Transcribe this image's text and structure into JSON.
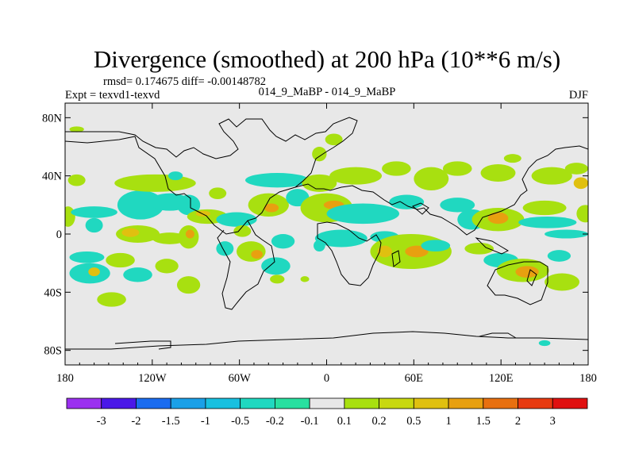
{
  "chart_data": {
    "type": "heatmap",
    "title": "Divergence (smoothed) at 200 hPa (10**6 m/s)",
    "stats_label": "rmsd= 0.174675 diff= -0.00148782",
    "left_label": "Expt = texvd1-texvd",
    "center_label": "014_9_MaBP - 014_9_MaBP",
    "right_label": "DJF",
    "xlim": [
      -180,
      180
    ],
    "ylim": [
      -90,
      90
    ],
    "x_ticks": [
      {
        "value": -180,
        "label": "180"
      },
      {
        "value": -120,
        "label": "120W"
      },
      {
        "value": -60,
        "label": "60W"
      },
      {
        "value": 0,
        "label": "0"
      },
      {
        "value": 60,
        "label": "60E"
      },
      {
        "value": 120,
        "label": "120E"
      },
      {
        "value": 180,
        "label": "180"
      }
    ],
    "y_ticks": [
      {
        "value": 80,
        "label": "80N"
      },
      {
        "value": 40,
        "label": "40N"
      },
      {
        "value": 0,
        "label": "0"
      },
      {
        "value": -40,
        "label": "40S"
      },
      {
        "value": -80,
        "label": "80S"
      }
    ],
    "colorbar": {
      "colors": [
        "#9b30f0",
        "#4a18e8",
        "#1a6cf0",
        "#1aa0e8",
        "#18c0e0",
        "#20d8c0",
        "#28e0a0",
        "#e8e8e8",
        "#a8e010",
        "#c8d810",
        "#e0c010",
        "#e8a010",
        "#e87010",
        "#e83a10",
        "#e01010"
      ],
      "labels": [
        "-3",
        "-2",
        "-1.5",
        "-1",
        "-0.5",
        "-0.2",
        "-0.1",
        "0.1",
        "0.2",
        "0.5",
        "1",
        "1.5",
        "2",
        "3"
      ]
    },
    "blobs": [
      {
        "lon": -172,
        "lat": 72,
        "rx": 5,
        "ry": 2,
        "level": 8
      },
      {
        "lon": -172,
        "lat": 37,
        "rx": 6,
        "ry": 4,
        "level": 8
      },
      {
        "lon": -178,
        "lat": 12,
        "rx": 5,
        "ry": 7,
        "level": 8
      },
      {
        "lon": -160,
        "lat": 15,
        "rx": 16,
        "ry": 4,
        "level": 5
      },
      {
        "lon": -160,
        "lat": 6,
        "rx": 6,
        "ry": 5,
        "level": 5
      },
      {
        "lon": -128,
        "lat": 20,
        "rx": 16,
        "ry": 10,
        "level": 5
      },
      {
        "lon": -118,
        "lat": 35,
        "rx": 28,
        "ry": 6,
        "level": 8
      },
      {
        "lon": -108,
        "lat": 22,
        "rx": 14,
        "ry": 6,
        "level": 5
      },
      {
        "lon": -130,
        "lat": 0,
        "rx": 15,
        "ry": 6,
        "level": 8
      },
      {
        "lon": -135,
        "lat": 1,
        "rx": 6,
        "ry": 3,
        "level": 10
      },
      {
        "lon": -108,
        "lat": -3,
        "rx": 12,
        "ry": 4,
        "level": 8
      },
      {
        "lon": -95,
        "lat": -2,
        "rx": 7,
        "ry": 8,
        "level": 8
      },
      {
        "lon": -94,
        "lat": 0,
        "rx": 3,
        "ry": 3,
        "level": 11
      },
      {
        "lon": -165,
        "lat": -16,
        "rx": 12,
        "ry": 4,
        "level": 5
      },
      {
        "lon": -163,
        "lat": -27,
        "rx": 14,
        "ry": 7,
        "level": 5
      },
      {
        "lon": -160,
        "lat": -26,
        "rx": 4,
        "ry": 3,
        "level": 10
      },
      {
        "lon": -142,
        "lat": -18,
        "rx": 10,
        "ry": 5,
        "level": 8
      },
      {
        "lon": -130,
        "lat": -28,
        "rx": 10,
        "ry": 5,
        "level": 5
      },
      {
        "lon": -110,
        "lat": -22,
        "rx": 8,
        "ry": 5,
        "level": 8
      },
      {
        "lon": -95,
        "lat": -35,
        "rx": 8,
        "ry": 6,
        "level": 8
      },
      {
        "lon": -148,
        "lat": -45,
        "rx": 10,
        "ry": 5,
        "level": 8
      },
      {
        "lon": -104,
        "lat": 40,
        "rx": 5,
        "ry": 3,
        "level": 5
      },
      {
        "lon": -95,
        "lat": 20,
        "rx": 8,
        "ry": 7,
        "level": 5
      },
      {
        "lon": -82,
        "lat": 12,
        "rx": 14,
        "ry": 5,
        "level": 8
      },
      {
        "lon": -85,
        "lat": 14,
        "rx": 5,
        "ry": 2,
        "level": 10
      },
      {
        "lon": -75,
        "lat": 28,
        "rx": 6,
        "ry": 4,
        "level": 8
      },
      {
        "lon": -62,
        "lat": 10,
        "rx": 14,
        "ry": 5,
        "level": 5
      },
      {
        "lon": -58,
        "lat": 2,
        "rx": 6,
        "ry": 4,
        "level": 8
      },
      {
        "lon": -70,
        "lat": -10,
        "rx": 6,
        "ry": 5,
        "level": 5
      },
      {
        "lon": -52,
        "lat": -12,
        "rx": 10,
        "ry": 7,
        "level": 8
      },
      {
        "lon": -48,
        "lat": -14,
        "rx": 4,
        "ry": 3,
        "level": 11
      },
      {
        "lon": -30,
        "lat": -5,
        "rx": 8,
        "ry": 5,
        "level": 5
      },
      {
        "lon": -35,
        "lat": -22,
        "rx": 10,
        "ry": 6,
        "level": 5
      },
      {
        "lon": -34,
        "lat": -31,
        "rx": 5,
        "ry": 3,
        "level": 8
      },
      {
        "lon": -15,
        "lat": -31,
        "rx": 3,
        "ry": 2,
        "level": 8
      },
      {
        "lon": -40,
        "lat": 20,
        "rx": 14,
        "ry": 8,
        "level": 8
      },
      {
        "lon": -38,
        "lat": 18,
        "rx": 5,
        "ry": 3,
        "level": 11
      },
      {
        "lon": -34,
        "lat": 37,
        "rx": 22,
        "ry": 5,
        "level": 5
      },
      {
        "lon": -20,
        "lat": 25,
        "rx": 8,
        "ry": 6,
        "level": 5
      },
      {
        "lon": -5,
        "lat": 35,
        "rx": 12,
        "ry": 6,
        "level": 8
      },
      {
        "lon": 0,
        "lat": 18,
        "rx": 18,
        "ry": 10,
        "level": 8
      },
      {
        "lon": 5,
        "lat": 20,
        "rx": 7,
        "ry": 3,
        "level": 11
      },
      {
        "lon": 10,
        "lat": -3,
        "rx": 18,
        "ry": 6,
        "level": 5
      },
      {
        "lon": -5,
        "lat": -8,
        "rx": 4,
        "ry": 4,
        "level": 5
      },
      {
        "lon": -5,
        "lat": 55,
        "rx": 5,
        "ry": 5,
        "level": 8
      },
      {
        "lon": 5,
        "lat": 65,
        "rx": 6,
        "ry": 4,
        "level": 8
      },
      {
        "lon": 20,
        "lat": 40,
        "rx": 18,
        "ry": 6,
        "level": 8
      },
      {
        "lon": 25,
        "lat": 14,
        "rx": 25,
        "ry": 7,
        "level": 5
      },
      {
        "lon": 55,
        "lat": 22,
        "rx": 12,
        "ry": 5,
        "level": 5
      },
      {
        "lon": 40,
        "lat": -2,
        "rx": 10,
        "ry": 4,
        "level": 5
      },
      {
        "lon": 58,
        "lat": -12,
        "rx": 28,
        "ry": 12,
        "level": 8
      },
      {
        "lon": 62,
        "lat": -12,
        "rx": 8,
        "ry": 4,
        "level": 11
      },
      {
        "lon": 40,
        "lat": -12,
        "rx": 5,
        "ry": 4,
        "level": 10
      },
      {
        "lon": 75,
        "lat": -8,
        "rx": 10,
        "ry": 4,
        "level": 5
      },
      {
        "lon": 72,
        "lat": 38,
        "rx": 12,
        "ry": 8,
        "level": 8
      },
      {
        "lon": 48,
        "lat": 45,
        "rx": 10,
        "ry": 5,
        "level": 8
      },
      {
        "lon": 90,
        "lat": 45,
        "rx": 10,
        "ry": 5,
        "level": 8
      },
      {
        "lon": 118,
        "lat": 42,
        "rx": 12,
        "ry": 6,
        "level": 8
      },
      {
        "lon": 128,
        "lat": 52,
        "rx": 6,
        "ry": 3,
        "level": 8
      },
      {
        "lon": 155,
        "lat": 40,
        "rx": 14,
        "ry": 6,
        "level": 8
      },
      {
        "lon": 172,
        "lat": 45,
        "rx": 8,
        "ry": 4,
        "level": 8
      },
      {
        "lon": 175,
        "lat": 35,
        "rx": 5,
        "ry": 4,
        "level": 10
      },
      {
        "lon": 90,
        "lat": 20,
        "rx": 12,
        "ry": 5,
        "level": 5
      },
      {
        "lon": 100,
        "lat": 10,
        "rx": 10,
        "ry": 7,
        "level": 5
      },
      {
        "lon": 118,
        "lat": 10,
        "rx": 18,
        "ry": 8,
        "level": 8
      },
      {
        "lon": 118,
        "lat": 11,
        "rx": 7,
        "ry": 4,
        "level": 11
      },
      {
        "lon": 150,
        "lat": 18,
        "rx": 15,
        "ry": 5,
        "level": 8
      },
      {
        "lon": 152,
        "lat": 8,
        "rx": 20,
        "ry": 4,
        "level": 5
      },
      {
        "lon": 165,
        "lat": 0,
        "rx": 15,
        "ry": 3,
        "level": 5
      },
      {
        "lon": 178,
        "lat": 14,
        "rx": 6,
        "ry": 6,
        "level": 8
      },
      {
        "lon": 105,
        "lat": -10,
        "rx": 10,
        "ry": 4,
        "level": 8
      },
      {
        "lon": 120,
        "lat": -18,
        "rx": 12,
        "ry": 5,
        "level": 5
      },
      {
        "lon": 135,
        "lat": -25,
        "rx": 18,
        "ry": 8,
        "level": 8
      },
      {
        "lon": 138,
        "lat": -26,
        "rx": 8,
        "ry": 4,
        "level": 11
      },
      {
        "lon": 162,
        "lat": -33,
        "rx": 12,
        "ry": 6,
        "level": 8
      },
      {
        "lon": 160,
        "lat": -15,
        "rx": 8,
        "ry": 4,
        "level": 5
      },
      {
        "lon": 150,
        "lat": -75,
        "rx": 4,
        "ry": 2,
        "level": 5
      }
    ]
  }
}
